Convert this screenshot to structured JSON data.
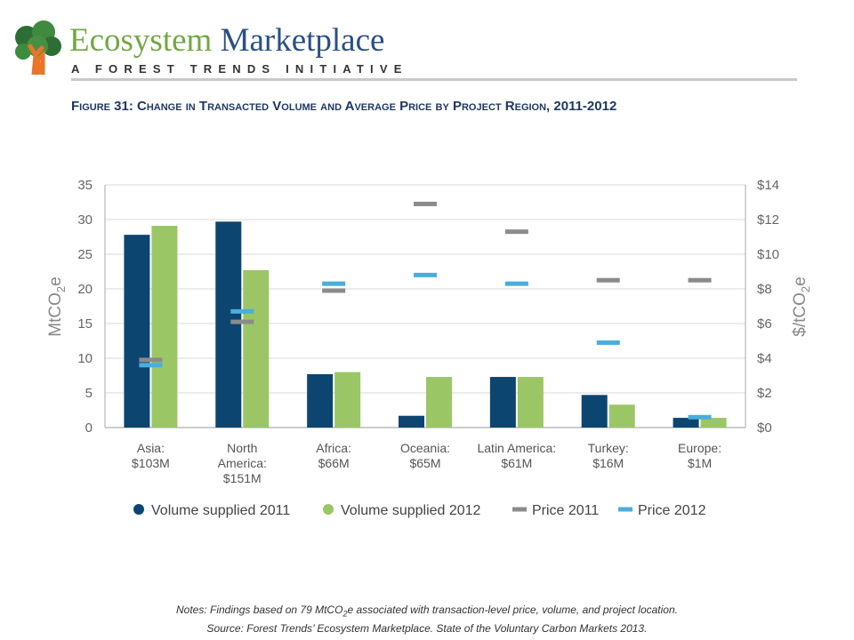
{
  "header": {
    "brand_part1": "Ecosystem",
    "brand_part2": " Marketplace",
    "tagline": "A FOREST TRENDS INITIATIVE"
  },
  "figure_title": "Figure 31: Change in Transacted Volume and Average Price by Project Region, 2011-2012",
  "notes": {
    "line1_a": "Notes: Findings based on 79 MtCO",
    "line1_sub": "2",
    "line1_b": "e associated with transaction-level price, volume, and project location.",
    "line2": "Source: Forest Trends’ Ecosystem Marketplace. State of the Voluntary Carbon Markets 2013."
  },
  "colors": {
    "volume_2011": "#0d4571",
    "volume_2012": "#9bc666",
    "price_2011": "#8b8b8b",
    "price_2012": "#4aaedb",
    "brand_green": "#72a843",
    "brand_blue": "#2b4f86",
    "title_blue": "#1f3864"
  },
  "chart_data": {
    "type": "bar",
    "title": "Figure 31: Change in Transacted Volume and Average Price by Project Region, 2011-2012",
    "categories": [
      [
        "Asia:",
        "$103M"
      ],
      [
        "North",
        "America:",
        "$151M"
      ],
      [
        "Africa:",
        "$66M"
      ],
      [
        "Oceania:",
        "$65M"
      ],
      [
        "Latin America:",
        "$61M"
      ],
      [
        "Turkey:",
        "$16M"
      ],
      [
        "Europe:",
        "$1M"
      ]
    ],
    "ylabel_left": "MtCO",
    "ylabel_left_sub": "2",
    "ylabel_left_suffix": "e",
    "ylabel_right": "$/tCO",
    "ylabel_right_sub": "2",
    "ylabel_right_suffix": "e",
    "ylim_left": [
      0,
      35
    ],
    "ylim_right": [
      0,
      14
    ],
    "yticks_left": [
      "0",
      "5",
      "10",
      "15",
      "20",
      "25",
      "30",
      "35"
    ],
    "yticks_right": [
      "$0",
      "$2",
      "$4",
      "$6",
      "$8",
      "$10",
      "$12",
      "$14"
    ],
    "legend_position": "bottom",
    "series": [
      {
        "name": "Volume supplied 2011",
        "kind": "bar",
        "axis": "left",
        "values": [
          27.8,
          29.7,
          7.7,
          1.7,
          7.3,
          4.7,
          1.4
        ]
      },
      {
        "name": "Volume supplied 2012",
        "kind": "bar",
        "axis": "left",
        "values": [
          29.1,
          22.7,
          8.0,
          7.3,
          7.3,
          3.3,
          1.4
        ]
      },
      {
        "name": "Price 2011",
        "kind": "marker",
        "axis": "right",
        "values": [
          3.9,
          6.1,
          7.9,
          12.9,
          11.3,
          8.5,
          8.5
        ]
      },
      {
        "name": "Price 2012",
        "kind": "marker",
        "axis": "right",
        "values": [
          3.6,
          6.7,
          8.3,
          8.8,
          8.3,
          4.9,
          0.6
        ]
      }
    ]
  }
}
